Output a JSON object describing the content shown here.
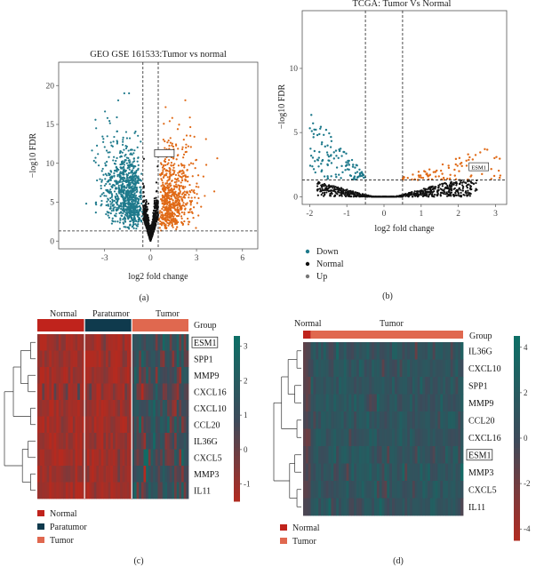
{
  "colors": {
    "down": "#1f7a8c",
    "normal": "#111111",
    "up": "#e06a17",
    "hm_low": "#b52a1f",
    "hm_mid": "#3d4a5a",
    "hm_high": "#0e6e66",
    "group_normal": "#c0231c",
    "group_paratumor": "#0f3a4d",
    "group_tumor": "#e0684f"
  },
  "chart_data": [
    {
      "id": "a",
      "type": "scatter",
      "title": "GEO GSE 161533:Tumor vs normal",
      "xlabel": "log2 fold change",
      "ylabel": "−log10 FDR",
      "xlim": [
        -6,
        7
      ],
      "ylim": [
        -1,
        23
      ],
      "xticks": [
        "-3",
        "0",
        "3",
        "6"
      ],
      "xtick_values": [
        -3,
        0,
        3,
        6
      ],
      "yticks": [
        "0",
        "5",
        "10",
        "15",
        "20"
      ],
      "ytick_values": [
        0,
        5,
        10,
        15,
        20
      ],
      "fc_cutoffs": [
        -0.5,
        0.5
      ],
      "fdr_cutoff": 1.3,
      "highlight_box": {
        "x": 0.9,
        "y": 11.3
      },
      "series": [
        {
          "name": "Down",
          "color_key": "down"
        },
        {
          "name": "Normal",
          "color_key": "normal"
        },
        {
          "name": "Up",
          "color_key": "up"
        }
      ],
      "panel_label": "(a)"
    },
    {
      "id": "b",
      "type": "scatter",
      "title": "TCGA: Tumor Vs Normal",
      "xlabel": "log2 fold change",
      "ylabel": "−log10 FDR",
      "xlim": [
        -2.2,
        3.3
      ],
      "ylim": [
        -0.6,
        14.5
      ],
      "xticks": [
        "-2",
        "-1",
        "0",
        "1",
        "2",
        "3"
      ],
      "xtick_values": [
        -2,
        -1,
        0,
        1,
        2,
        3
      ],
      "yticks": [
        "0",
        "5",
        "10"
      ],
      "ytick_values": [
        0,
        5,
        10
      ],
      "fc_cutoffs": [
        -0.5,
        0.5
      ],
      "fdr_cutoff": 1.3,
      "annotation": {
        "label": "ESM1",
        "x": 2.55,
        "y": 2.3
      },
      "legend": [
        "Down",
        "Normal",
        "Up"
      ],
      "legend_colors": [
        "#1f7a8c",
        "#111111",
        "#777777"
      ],
      "panel_label": "(b)"
    },
    {
      "id": "c",
      "type": "heatmap",
      "groups": [
        {
          "name": "Normal",
          "n": 20
        },
        {
          "name": "Paratumor",
          "n": 20
        },
        {
          "name": "Tumor",
          "n": 24
        }
      ],
      "group_label": "Group",
      "genes": [
        "ESM1",
        "SPP1",
        "MMP9",
        "CXCL16",
        "CXCL10",
        "CCL20",
        "IL36G",
        "CXCL5",
        "MMP3",
        "IL11"
      ],
      "boxed_gene": "ESM1",
      "colorbar": {
        "min": -1.5,
        "max": 3.3,
        "ticks": [
          3,
          2,
          1,
          0,
          -1
        ]
      },
      "legend": [
        "Normal",
        "Paratumor",
        "Tumor"
      ],
      "panel_label": "(c)"
    },
    {
      "id": "d",
      "type": "heatmap",
      "groups": [
        {
          "name": "Normal",
          "n": 3
        },
        {
          "name": "Tumor",
          "n": 60
        }
      ],
      "group_label": "Group",
      "genes": [
        "IL36G",
        "CXCL10",
        "SPP1",
        "MMP9",
        "CCL20",
        "CXCL16",
        "ESM1",
        "MMP3",
        "CXCL5",
        "IL11"
      ],
      "boxed_gene": "ESM1",
      "colorbar": {
        "min": -4.5,
        "max": 4.5,
        "ticks": [
          4,
          2,
          0,
          -2,
          -4
        ]
      },
      "legend": [
        "Normal",
        "Tumor"
      ],
      "panel_label": "(d)"
    }
  ]
}
